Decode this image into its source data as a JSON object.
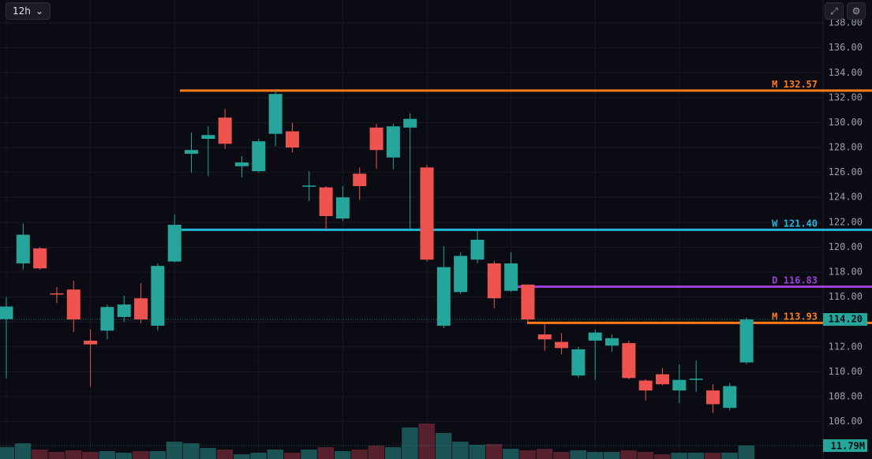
{
  "chart_data": {
    "type": "candlestick",
    "timeframe": "12h",
    "ylim": [
      103,
      139.84
    ],
    "yticks": [
      {
        "value": 106,
        "label": "106.00"
      },
      {
        "value": 108,
        "label": "108.00"
      },
      {
        "value": 110,
        "label": "110.00"
      },
      {
        "value": 112,
        "label": "112.00"
      },
      {
        "value": 114,
        "label": "114.00"
      },
      {
        "value": 116,
        "label": "116.00"
      },
      {
        "value": 118,
        "label": "118.00"
      },
      {
        "value": 120,
        "label": "120.00"
      },
      {
        "value": 122,
        "label": "122.00"
      },
      {
        "value": 124,
        "label": "124.00"
      },
      {
        "value": 126,
        "label": "126.00"
      },
      {
        "value": 128,
        "label": "128.00"
      },
      {
        "value": 130,
        "label": "130.00"
      },
      {
        "value": 132,
        "label": "132.00"
      },
      {
        "value": 134,
        "label": "134.00"
      },
      {
        "value": 136,
        "label": "136.00"
      },
      {
        "value": 138,
        "label": "138.00"
      }
    ],
    "grid": true,
    "up_color": "#26a69a",
    "down_color": "#ef5350",
    "open": [
      114.23,
      118.7,
      119.9,
      116.3,
      116.6,
      112.5,
      113.3,
      114.4,
      115.9,
      113.7,
      118.85,
      127.5,
      128.7,
      130.4,
      126.5,
      126.1,
      129.1,
      129.3,
      124.9,
      124.8,
      122.3,
      125.9,
      129.6,
      127.2,
      129.6,
      126.4,
      113.7,
      116.4,
      119.0,
      118.7,
      116.5,
      117.0,
      113.0,
      112.4,
      109.7,
      112.5,
      112.1,
      112.3,
      109.3,
      109.8,
      108.5,
      109.35,
      108.5,
      107.1,
      110.75
    ],
    "high": [
      116.0,
      121.9,
      120.0,
      116.8,
      117.3,
      113.4,
      115.4,
      116.1,
      117.1,
      118.7,
      122.6,
      129.2,
      129.7,
      131.1,
      127.3,
      128.7,
      132.6,
      130.0,
      126.1,
      124.9,
      124.9,
      126.4,
      129.9,
      129.9,
      130.75,
      126.6,
      120.1,
      119.6,
      121.4,
      118.9,
      119.6,
      117.0,
      113.9,
      113.1,
      112.0,
      113.4,
      113.0,
      112.5,
      109.4,
      110.3,
      110.6,
      110.9,
      109.0,
      109.1,
      114.35
    ],
    "low": [
      109.5,
      118.2,
      118.2,
      115.5,
      113.2,
      108.8,
      112.6,
      114.0,
      113.9,
      113.3,
      118.8,
      126.0,
      125.7,
      127.9,
      125.6,
      126.0,
      128.1,
      127.6,
      123.7,
      121.4,
      122.1,
      123.8,
      126.3,
      126.25,
      121.5,
      118.85,
      113.5,
      116.25,
      118.7,
      115.1,
      116.4,
      114.0,
      111.7,
      111.4,
      109.5,
      109.35,
      111.6,
      109.4,
      107.7,
      108.9,
      107.5,
      108.4,
      106.7,
      106.9,
      110.6
    ],
    "close": [
      115.24,
      121.0,
      118.3,
      116.2,
      114.2,
      112.2,
      115.2,
      115.4,
      114.2,
      118.5,
      121.8,
      127.8,
      129.0,
      128.3,
      126.8,
      128.5,
      132.3,
      128.0,
      124.95,
      122.5,
      124.0,
      124.9,
      127.8,
      129.7,
      130.3,
      119.0,
      118.4,
      119.3,
      120.6,
      115.9,
      118.7,
      114.2,
      112.6,
      111.9,
      111.8,
      113.15,
      112.7,
      109.5,
      108.5,
      109.0,
      109.35,
      109.45,
      107.4,
      108.85,
      114.2
    ],
    "volume": [
      10400000,
      13870000,
      8320000,
      6240000,
      7630000,
      6240000,
      6940000,
      5550000,
      6940000,
      6940000,
      15260000,
      13870000,
      9710000,
      8320000,
      4160000,
      5550000,
      8320000,
      5550000,
      8320000,
      10400000,
      6940000,
      8320000,
      11790000,
      10400000,
      27740000,
      31210000,
      22890000,
      15260000,
      12480000,
      13180000,
      9020000,
      7630000,
      9020000,
      6240000,
      7630000,
      6240000,
      6240000,
      7630000,
      6240000,
      4160000,
      5550000,
      5550000,
      5550000,
      5550000,
      11790000
    ],
    "last_price_label": "114.20",
    "last_volume_label": "11.79M",
    "levels": [
      {
        "tag": "M",
        "value": 132.57,
        "label": "132.57",
        "color": "#ff7a1a"
      },
      {
        "tag": "W",
        "value": 121.4,
        "label": "121.40",
        "color": "#1fb8d8"
      },
      {
        "tag": "D",
        "value": 116.83,
        "label": "116.83",
        "color": "#9b3fd6"
      },
      {
        "tag": "M",
        "value": 113.93,
        "label": "113.93",
        "color": "#ff7a1a"
      }
    ]
  }
}
